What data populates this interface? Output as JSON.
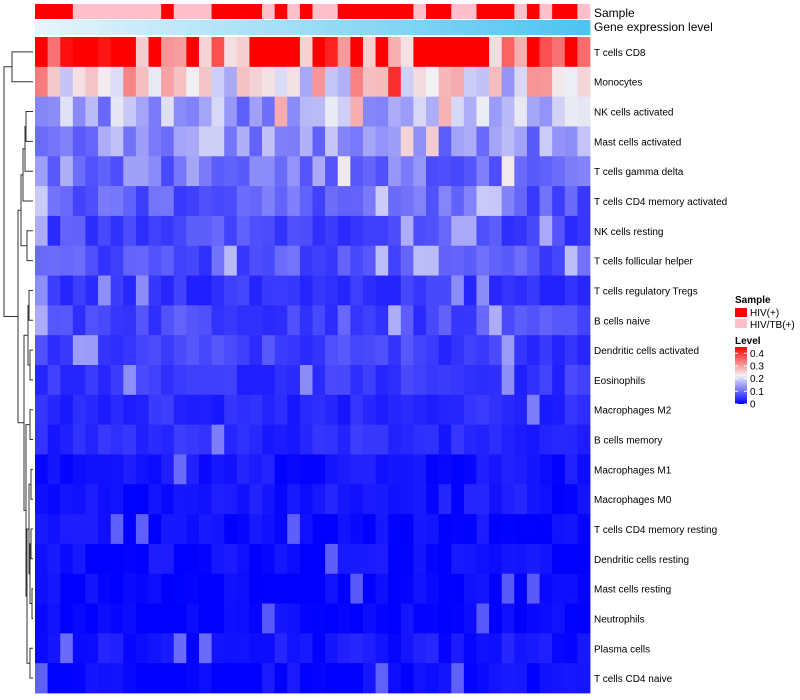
{
  "chart_data": {
    "type": "heatmap",
    "annotations": {
      "sample_label": "Sample",
      "gene_label": "Gene expression level"
    },
    "rows": [
      "T cells CD8",
      "Monocytes",
      "NK cells activated",
      "Mast cells activated",
      "T cells gamma delta",
      "T cells CD4 memory activated",
      "NK cells resting",
      "T cells follicular helper",
      "T cells regulatory  Tregs",
      "B cells naive",
      "Dendritic cells activated",
      "Eosinophils",
      "Macrophages M2",
      "B cells memory",
      "Macrophages M1",
      "Macrophages M0",
      "T cells CD4 memory resting",
      "Dendritic cells resting",
      "Mast cells resting",
      "Neutrophils",
      "Plasma cells",
      "T cells CD4 naive"
    ],
    "n_samples": 44,
    "sample_groups": [
      1,
      1,
      1,
      0,
      0,
      0,
      0,
      0,
      0,
      0,
      1,
      0,
      0,
      0,
      1,
      1,
      1,
      1,
      0,
      1,
      0,
      1,
      0,
      0,
      1,
      1,
      1,
      1,
      1,
      1,
      0,
      1,
      1,
      0,
      0,
      1,
      1,
      1,
      0,
      1,
      0,
      1,
      1,
      0
    ],
    "legend": {
      "sample_title": "Sample",
      "sample_entries": [
        "HIV(+)",
        "HIV/TB(+)"
      ],
      "level_title": "Level",
      "level_ticks": [
        "0.4",
        "0.3",
        "0.2",
        "0.1",
        "0"
      ],
      "level_range": [
        0,
        0.45
      ]
    },
    "row_means": [
      0.42,
      0.25,
      0.16,
      0.14,
      0.12,
      0.09,
      0.07,
      0.08,
      0.05,
      0.07,
      0.06,
      0.05,
      0.04,
      0.04,
      0.02,
      0.02,
      0.01,
      0.01,
      0.005,
      0.003,
      0.02,
      0.01
    ],
    "colors": {
      "low": "#0000ff",
      "mid": "#f2f2f5",
      "high": "#ff0000",
      "hiv": "#ff0000",
      "hivtb": "#ffc0cb",
      "gene_start": "#e6f4fb",
      "gene_end": "#4fc4f0",
      "dendrogram": "#333333"
    }
  }
}
